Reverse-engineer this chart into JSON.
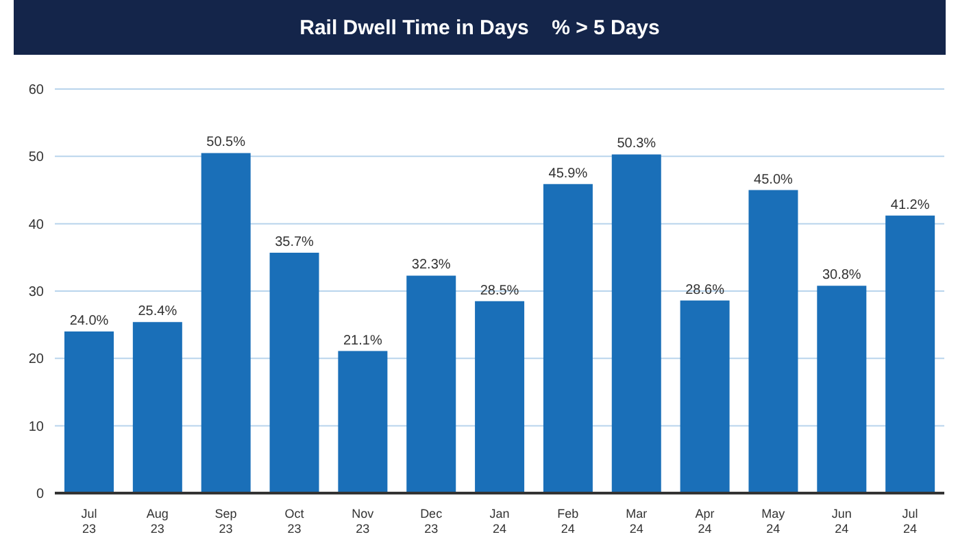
{
  "chart_data": {
    "type": "bar",
    "title": "Rail Dwell Time in Days    % > 5 Days",
    "categories": [
      "Jul 23",
      "Aug 23",
      "Sep 23",
      "Oct 23",
      "Nov 23",
      "Dec 23",
      "Jan 24",
      "Feb 24",
      "Mar 24",
      "Apr 24",
      "May 24",
      "Jun 24",
      "Jul 24"
    ],
    "values": [
      24.0,
      25.4,
      50.5,
      35.7,
      21.1,
      32.3,
      28.5,
      45.9,
      50.3,
      28.6,
      45.0,
      30.8,
      41.2
    ],
    "value_labels": [
      "24.0%",
      "25.4%",
      "50.5%",
      "35.7%",
      "21.1%",
      "32.3%",
      "28.5%",
      "45.9%",
      "50.3%",
      "28.6%",
      "45.0%",
      "30.8%",
      "41.2%"
    ],
    "color": "#1a6fb8",
    "ylim": [
      0,
      60
    ],
    "yticks": [
      0,
      10,
      20,
      30,
      40,
      50,
      60
    ],
    "grid": "y"
  }
}
